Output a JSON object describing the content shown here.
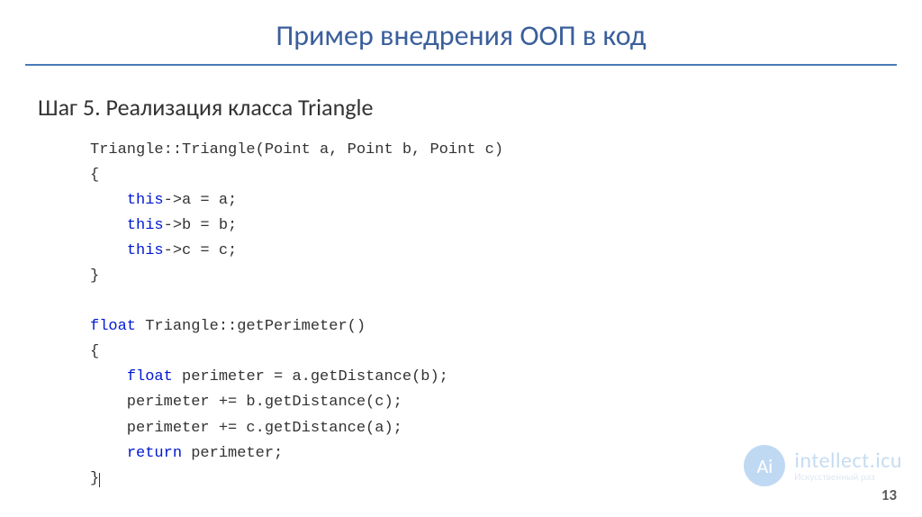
{
  "slide": {
    "title": "Пример внедрения ООП в код",
    "subtitle": "Шаг 5. Реализация класса Triangle",
    "page_number": "13"
  },
  "code": {
    "line1_a": "Triangle::Triangle(Point a, Point b, Point c)",
    "line2": "{",
    "line3_a": "    ",
    "line3_kw": "this",
    "line3_b": "->a = a;",
    "line4_a": "    ",
    "line4_kw": "this",
    "line4_b": "->b = b;",
    "line5_a": "    ",
    "line5_kw": "this",
    "line5_b": "->c = c;",
    "line6": "}",
    "line7": "",
    "line8_kw": "float",
    "line8_b": " Triangle::getPerimeter()",
    "line9": "{",
    "line10_a": "    ",
    "line10_kw": "float",
    "line10_b": " perimeter = a.getDistance(b);",
    "line11": "    perimeter += b.getDistance(c);",
    "line12": "    perimeter += c.getDistance(a);",
    "line13_a": "    ",
    "line13_kw": "return",
    "line13_b": " perimeter;",
    "line14": "}"
  },
  "watermark": {
    "logo_text": "Ai",
    "main": "intellect.icu",
    "sub": "Искусственный раз"
  },
  "colors": {
    "title": "#3a5f9b",
    "underline": "#4a7ab8",
    "keyword": "#0018d4",
    "text": "#333333",
    "wm_circle": "#5c9de0",
    "wm_main": "#6aa5dc"
  }
}
